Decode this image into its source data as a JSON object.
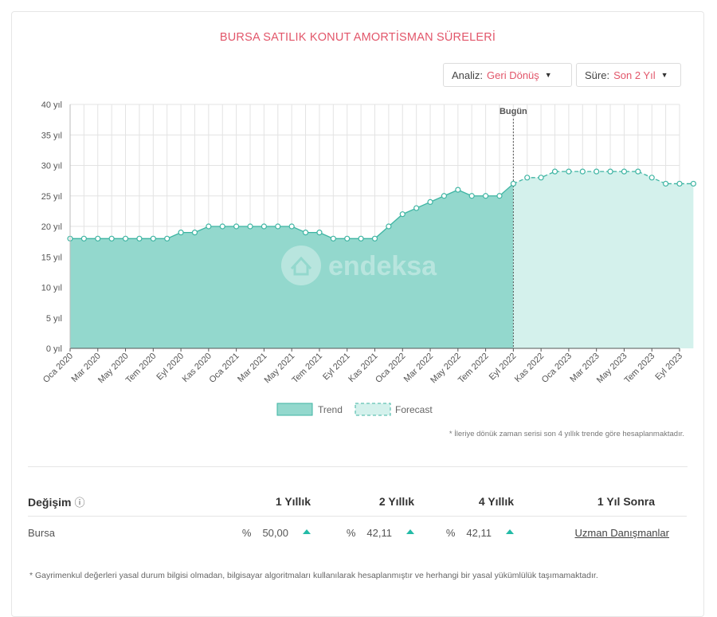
{
  "title": "BURSA SATILIK KONUT AMORTİSMAN SÜRELERİ",
  "controls": {
    "analysis": {
      "label": "Analiz:",
      "value": "Geri Dönüş"
    },
    "duration": {
      "label": "Süre:",
      "value": "Son 2 Yıl"
    }
  },
  "watermark": "endeksa",
  "colors": {
    "trend": "#3fb5a3",
    "trend_fill": "#93d8cd",
    "forecast_fill": "#d4f1ec",
    "accent": "#e2566a",
    "up": "#24bba7"
  },
  "chart_data": {
    "type": "area",
    "title": "BURSA SATILIK KONUT AMORTİSMAN SÜRELERİ",
    "today_label": "Bugün",
    "x_ticks": [
      "Oca 2020",
      "Mar 2020",
      "May 2020",
      "Tem 2020",
      "Eyl 2020",
      "Kas 2020",
      "Oca 2021",
      "Mar 2021",
      "May 2021",
      "Tem 2021",
      "Eyl 2021",
      "Kas 2021",
      "Oca 2022",
      "Mar 2022",
      "May 2022",
      "Tem 2022",
      "Eyl 2022",
      "Kas 2022",
      "Oca 2023",
      "Mar 2023",
      "May 2023",
      "Tem 2023",
      "Eyl 2023"
    ],
    "y_ticks": [
      "0 yıl",
      "5 yıl",
      "10 yıl",
      "15 yıl",
      "20 yıl",
      "25 yıl",
      "30 yıl",
      "35 yıl",
      "40 yıl"
    ],
    "ylim": [
      0,
      40
    ],
    "series": [
      {
        "name": "Trend",
        "start_month": 0,
        "values": [
          18,
          18,
          18,
          18,
          18,
          18,
          18,
          18,
          19,
          19,
          20,
          20,
          20,
          20,
          20,
          20,
          20,
          19,
          19,
          18,
          18,
          18,
          18,
          20,
          22,
          23,
          24,
          25,
          26,
          25,
          25,
          25,
          27
        ]
      },
      {
        "name": "Forecast",
        "start_month": 32,
        "values": [
          27,
          28,
          28,
          29,
          29,
          29,
          29,
          29,
          29,
          29,
          28,
          27,
          27,
          27
        ]
      }
    ],
    "legend": [
      "Trend",
      "Forecast"
    ],
    "legend_position": "bottom-center"
  },
  "note": "* İleriye dönük zaman serisi son 4 yıllık trende göre hesaplanmaktadır.",
  "table": {
    "headers": [
      "Değişim",
      "1 Yıllık",
      "2 Yıllık",
      "4 Yıllık",
      "1 Yıl Sonra"
    ],
    "row": {
      "name": "Bursa",
      "pct_symbol": "%",
      "v1": "50,00",
      "v2": "42,11",
      "v4": "42,11",
      "link": "Uzman Danışmanlar"
    }
  },
  "footer": "* Gayrimenkul değerleri yasal durum bilgisi olmadan, bilgisayar algoritmaları kullanılarak hesaplanmıştır ve herhangi bir yasal yükümlülük taşımamaktadır."
}
